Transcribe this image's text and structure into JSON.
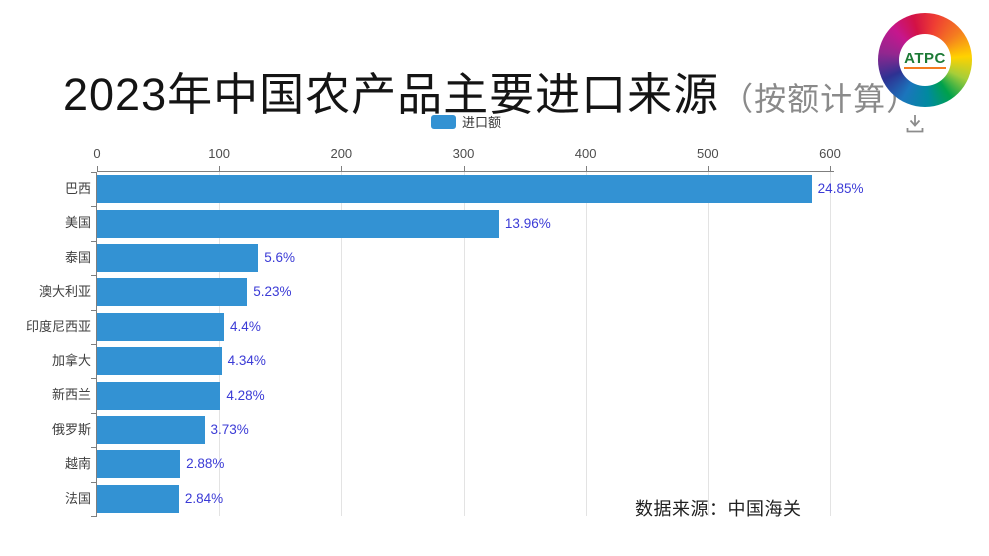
{
  "header": {
    "title_main": "2023年中国农产品主要进口来源",
    "title_note": "（按额计算）",
    "logo_text": "ATPC"
  },
  "legend": {
    "label": "进口额"
  },
  "icons": {
    "download_icon": "arrow-down-to-tray"
  },
  "footer": {
    "source": "数据来源：中国海关"
  },
  "colors": {
    "bar": "#3392d3",
    "value_label": "#3b3bd6",
    "axis": "#7f7f7f",
    "grid": "#e3e3e3"
  },
  "chart_data": {
    "type": "bar",
    "orientation": "horizontal",
    "title": "2023年中国农产品主要进口来源（按额计算）",
    "legend": [
      "进口额"
    ],
    "legend_position": "top-center",
    "grid": true,
    "xlim": [
      0,
      600
    ],
    "x_ticks": [
      0,
      100,
      200,
      300,
      400,
      500,
      600
    ],
    "categories": [
      "巴西",
      "美国",
      "泰国",
      "澳大利亚",
      "印度尼西亚",
      "加拿大",
      "新西兰",
      "俄罗斯",
      "越南",
      "法国"
    ],
    "series": [
      {
        "name": "进口额",
        "values": [
          585,
          329,
          132,
          123,
          104,
          102,
          101,
          88,
          68,
          67
        ],
        "data_labels": [
          "24.85%",
          "13.96%",
          "5.6%",
          "5.23%",
          "4.4%",
          "4.34%",
          "4.28%",
          "3.73%",
          "2.88%",
          "2.84%"
        ]
      }
    ],
    "source_note": "数据来源：中国海关"
  }
}
